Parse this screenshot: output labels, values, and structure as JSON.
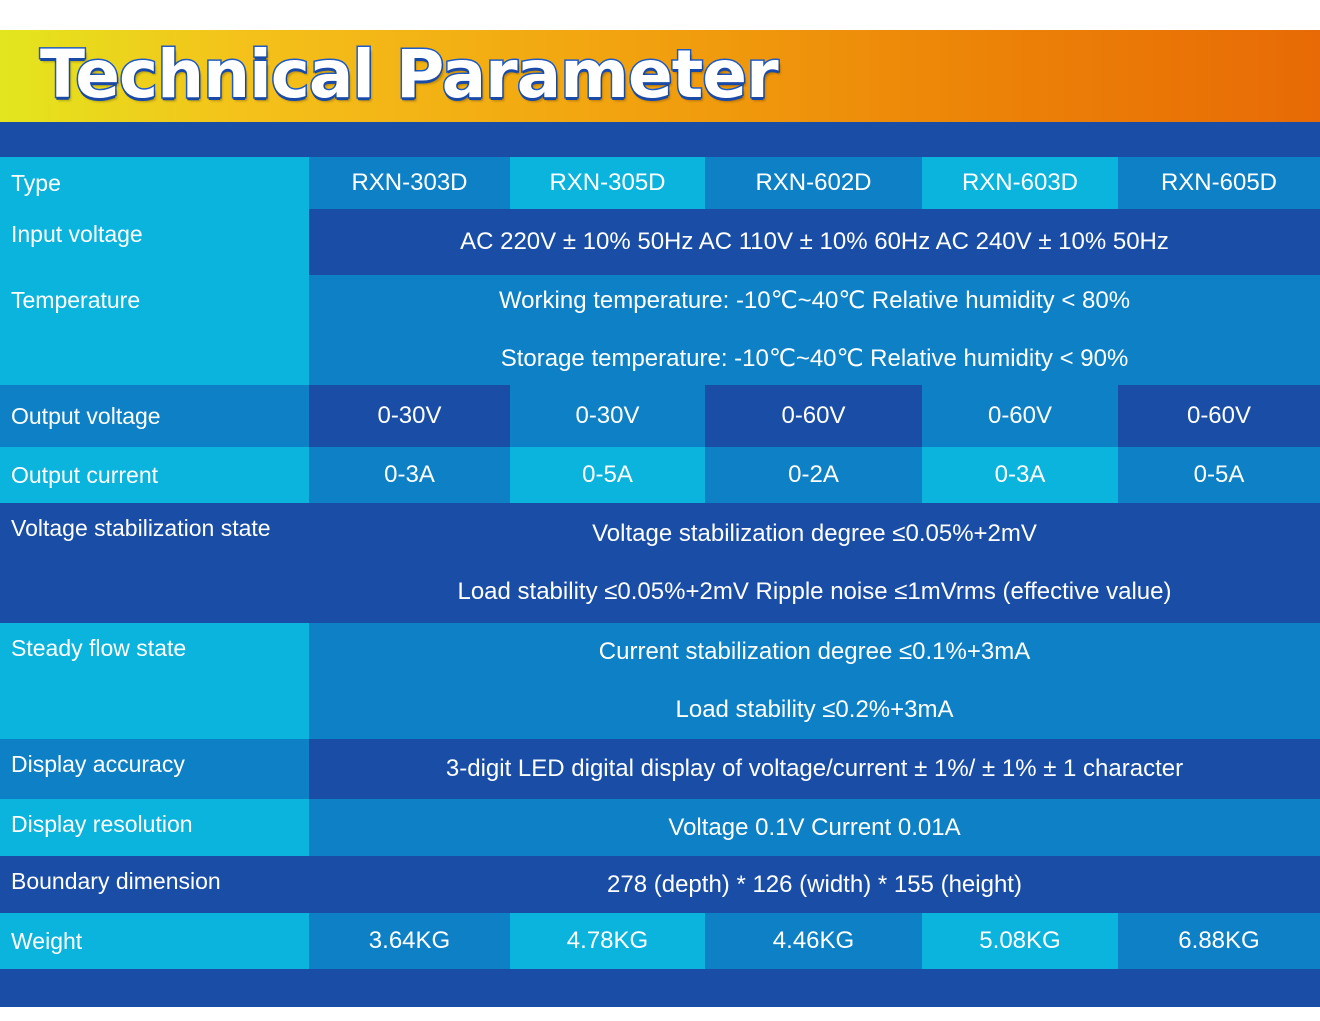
{
  "title": "Technical Parameter",
  "colors": {
    "label_bg": "#0ab4dd",
    "dark_bg": "#1a4ea6",
    "mid_bg": "#0d80c6",
    "light_bg": "#0ab4dd"
  },
  "rows": {
    "type": {
      "label": "Type",
      "values": [
        "RXN-303D",
        "RXN-305D",
        "RXN-602D",
        "RXN-603D",
        "RXN-605D"
      ]
    },
    "input_voltage": {
      "label": "Input voltage",
      "lines": [
        "AC 220V ± 10% 50Hz AC 110V ± 10% 60Hz AC 240V ± 10% 50Hz"
      ]
    },
    "temperature": {
      "label": "Temperature",
      "lines": [
        "Working temperature: -10℃~40℃ Relative humidity < 80%",
        "Storage temperature: -10℃~40℃ Relative humidity < 90%"
      ]
    },
    "output_voltage": {
      "label": "Output voltage",
      "values": [
        "0-30V",
        "0-30V",
        "0-60V",
        "0-60V",
        "0-60V"
      ]
    },
    "output_current": {
      "label": "Output current",
      "values": [
        "0-3A",
        "0-5A",
        "0-2A",
        "0-3A",
        "0-5A"
      ]
    },
    "voltage_stabilization": {
      "label": "Voltage stabilization state",
      "lines": [
        "Voltage stabilization degree ≤0.05%+2mV",
        "Load stability ≤0.05%+2mV Ripple noise ≤1mVrms (effective value)"
      ]
    },
    "steady_flow": {
      "label": "Steady flow state",
      "lines": [
        "Current stabilization degree ≤0.1%+3mA",
        "Load stability ≤0.2%+3mA"
      ]
    },
    "display_accuracy": {
      "label": "Display accuracy",
      "lines": [
        "3-digit LED digital display of voltage/current ± 1%/ ± 1% ± 1 character"
      ]
    },
    "display_resolution": {
      "label": "Display resolution",
      "lines": [
        "Voltage 0.1V Current 0.01A"
      ]
    },
    "boundary_dimension": {
      "label": "Boundary dimension",
      "lines": [
        "278 (depth) * 126 (width) * 155 (height)"
      ]
    },
    "weight": {
      "label": "Weight",
      "values": [
        "3.64KG",
        "4.78KG",
        "4.46KG",
        "5.08KG",
        "6.88KG"
      ]
    }
  }
}
